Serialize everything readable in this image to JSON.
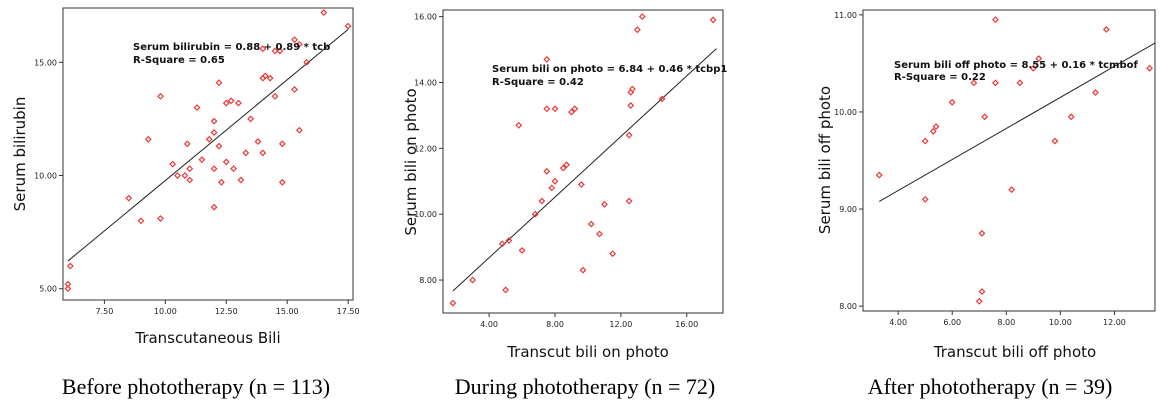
{
  "chart_data": [
    {
      "type": "scatter",
      "caption": "Before phototherapy (n = 113)",
      "xlabel": "Transcutaneous Bili",
      "ylabel": "Serum bilirubin",
      "equation": "Serum bilirubin = 0.88 + 0.89 * tcb",
      "rsquare": "R-Square = 0.65",
      "xlim": [
        5.8,
        17.7
      ],
      "ylim": [
        4.5,
        17.4
      ],
      "xticks": [
        7.5,
        10.0,
        12.5,
        15.0,
        17.5
      ],
      "xtick_labels": [
        "7.50",
        "10.00",
        "12.50",
        "15.00",
        "17.50"
      ],
      "yticks": [
        5.0,
        10.0,
        15.0
      ],
      "ytick_labels": [
        "5.00",
        "10.00",
        "15.00"
      ],
      "fit": {
        "intercept": 0.88,
        "slope": 0.89,
        "x_range": [
          6.0,
          17.5
        ]
      },
      "marker_color": "#e83a3a",
      "points": [
        [
          6.0,
          5.0
        ],
        [
          6.0,
          5.2
        ],
        [
          6.1,
          6.0
        ],
        [
          8.5,
          9.0
        ],
        [
          9.0,
          8.0
        ],
        [
          9.3,
          11.6
        ],
        [
          9.8,
          8.1
        ],
        [
          9.8,
          13.5
        ],
        [
          10.3,
          10.5
        ],
        [
          10.5,
          10.0
        ],
        [
          10.8,
          10.0
        ],
        [
          10.9,
          11.4
        ],
        [
          11.0,
          9.8
        ],
        [
          11.0,
          10.3
        ],
        [
          11.3,
          13.0
        ],
        [
          11.5,
          10.7
        ],
        [
          11.8,
          11.6
        ],
        [
          12.0,
          11.9
        ],
        [
          12.0,
          12.4
        ],
        [
          12.0,
          10.3
        ],
        [
          12.0,
          8.6
        ],
        [
          12.2,
          14.1
        ],
        [
          12.2,
          11.3
        ],
        [
          12.3,
          9.7
        ],
        [
          12.5,
          10.6
        ],
        [
          12.5,
          13.2
        ],
        [
          12.7,
          13.3
        ],
        [
          12.8,
          10.3
        ],
        [
          13.0,
          13.2
        ],
        [
          13.1,
          9.8
        ],
        [
          13.3,
          11.0
        ],
        [
          13.5,
          12.5
        ],
        [
          13.8,
          11.5
        ],
        [
          14.0,
          11.0
        ],
        [
          14.0,
          14.3
        ],
        [
          14.1,
          14.4
        ],
        [
          14.0,
          15.6
        ],
        [
          14.3,
          14.3
        ],
        [
          14.5,
          15.5
        ],
        [
          14.5,
          13.5
        ],
        [
          14.7,
          15.5
        ],
        [
          14.8,
          9.7
        ],
        [
          14.8,
          11.4
        ],
        [
          15.3,
          16.0
        ],
        [
          15.3,
          13.8
        ],
        [
          15.5,
          12.0
        ],
        [
          15.5,
          15.8
        ],
        [
          15.8,
          15.0
        ],
        [
          16.5,
          17.2
        ],
        [
          17.5,
          16.6
        ]
      ]
    },
    {
      "type": "scatter",
      "caption": "During phototherapy (n = 72)",
      "xlabel": "Transcut bili on photo",
      "ylabel": "Serum bili on photo",
      "equation": "Serum bili on photo = 6.84 + 0.46 * tcbp1",
      "rsquare": "R-Square = 0.42",
      "xlim": [
        1.2,
        18.2
      ],
      "ylim": [
        7.0,
        16.2
      ],
      "xticks": [
        4,
        8,
        12,
        16
      ],
      "xtick_labels": [
        "4.00",
        "8.00",
        "12.00",
        "16.00"
      ],
      "yticks": [
        8,
        10,
        12,
        14,
        16
      ],
      "ytick_labels": [
        "8.00",
        "10.00",
        "12.00",
        "14.00",
        "16.00"
      ],
      "fit": {
        "intercept": 6.84,
        "slope": 0.46,
        "x_range": [
          1.8,
          17.8
        ]
      },
      "marker_color": "#e83a3a",
      "points": [
        [
          1.8,
          7.3
        ],
        [
          3.0,
          8.0
        ],
        [
          4.8,
          9.1
        ],
        [
          5.0,
          7.7
        ],
        [
          5.2,
          9.2
        ],
        [
          5.8,
          12.7
        ],
        [
          6.0,
          8.9
        ],
        [
          6.8,
          10.0
        ],
        [
          7.2,
          10.4
        ],
        [
          7.5,
          13.2
        ],
        [
          7.5,
          11.3
        ],
        [
          7.5,
          14.7
        ],
        [
          7.8,
          10.8
        ],
        [
          8.0,
          13.2
        ],
        [
          8.0,
          11.0
        ],
        [
          8.5,
          11.4
        ],
        [
          8.7,
          11.5
        ],
        [
          9.0,
          13.1
        ],
        [
          9.2,
          13.2
        ],
        [
          9.6,
          10.9
        ],
        [
          9.7,
          8.3
        ],
        [
          10.2,
          9.7
        ],
        [
          10.7,
          9.4
        ],
        [
          11.0,
          10.3
        ],
        [
          11.5,
          8.8
        ],
        [
          12.5,
          10.4
        ],
        [
          12.5,
          12.4
        ],
        [
          12.6,
          13.3
        ],
        [
          12.6,
          13.7
        ],
        [
          12.7,
          13.8
        ],
        [
          13.0,
          15.6
        ],
        [
          13.3,
          16.0
        ],
        [
          14.5,
          13.5
        ],
        [
          17.6,
          15.9
        ]
      ]
    },
    {
      "type": "scatter",
      "caption": "After phototherapy (n = 39)",
      "xlabel": "Transcut bili off photo",
      "ylabel": "Serum bili off photo",
      "equation": "Serum bili off photo = 8.55 + 0.16 * tcmbof",
      "rsquare": "R-Square = 0.22",
      "xlim": [
        2.7,
        13.5
      ],
      "ylim": [
        7.95,
        11.05
      ],
      "xticks": [
        4,
        6,
        8,
        10,
        12
      ],
      "xtick_labels": [
        "4.00",
        "6.00",
        "8.00",
        "10.00",
        "12.00"
      ],
      "yticks": [
        8,
        9,
        10,
        11
      ],
      "ytick_labels": [
        "8.00",
        "9.00",
        "10.00",
        "11.00"
      ],
      "fit": {
        "intercept": 8.55,
        "slope": 0.16,
        "x_range": [
          3.3,
          13.5
        ]
      },
      "marker_color": "#e83a3a",
      "points": [
        [
          3.3,
          9.35
        ],
        [
          5.0,
          9.1
        ],
        [
          5.0,
          9.7
        ],
        [
          5.3,
          9.8
        ],
        [
          5.4,
          9.85
        ],
        [
          6.0,
          10.1
        ],
        [
          6.8,
          10.3
        ],
        [
          7.0,
          8.05
        ],
        [
          7.1,
          8.15
        ],
        [
          7.1,
          8.75
        ],
        [
          7.2,
          9.95
        ],
        [
          7.6,
          10.95
        ],
        [
          7.6,
          10.3
        ],
        [
          8.2,
          9.2
        ],
        [
          8.5,
          10.3
        ],
        [
          9.0,
          10.45
        ],
        [
          9.2,
          10.55
        ],
        [
          9.8,
          9.7
        ],
        [
          10.4,
          9.95
        ],
        [
          11.3,
          10.2
        ],
        [
          11.7,
          10.85
        ],
        [
          13.3,
          10.45
        ]
      ]
    }
  ]
}
